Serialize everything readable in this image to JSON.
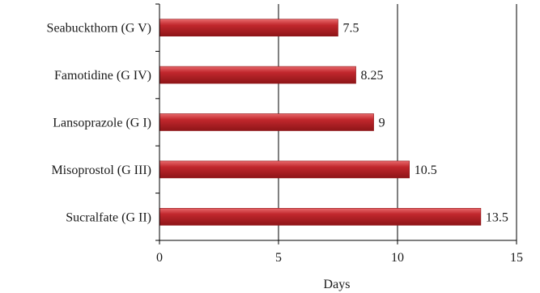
{
  "chart_data": {
    "type": "bar",
    "orientation": "horizontal",
    "categories": [
      "Sucralfate (G II)",
      "Misoprostol (G III)",
      "Lansoprazole (G I)",
      "Famotidine (G IV)",
      "Seabuckthorn (G V)"
    ],
    "values": [
      13.5,
      10.5,
      9,
      8.25,
      7.5
    ],
    "value_labels": [
      "13.5",
      "10.5",
      "9",
      "8.25",
      "7.5"
    ],
    "xlabel": "Days",
    "ylabel": "",
    "title": "",
    "xlim": [
      0,
      15
    ],
    "x_ticks": [
      "0",
      "5",
      "10",
      "15"
    ],
    "x_tick_values": [
      0,
      5,
      10,
      15
    ],
    "grid": "vertical major lines",
    "legend": "none",
    "bar_color": "#c1272d",
    "bar_color_light": "#e8696c",
    "bar_color_dark": "#8e1518"
  }
}
